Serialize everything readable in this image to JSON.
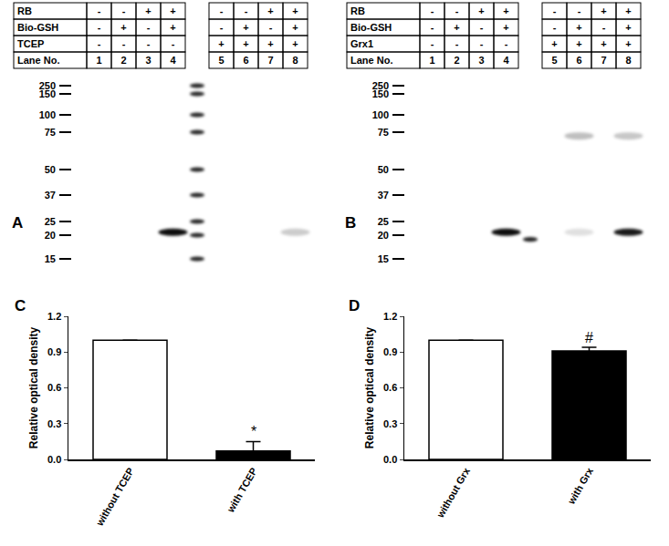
{
  "blots": [
    {
      "label": "A",
      "rows": [
        {
          "name": "RB",
          "cells": [
            "-",
            "-",
            "+",
            "+",
            "-",
            "-",
            "+",
            "+"
          ]
        },
        {
          "name": "Bio-GSH",
          "cells": [
            "-",
            "+",
            "-",
            "+",
            "-",
            "+",
            "-",
            "+"
          ]
        },
        {
          "name": "TCEP",
          "cells": [
            "-",
            "-",
            "-",
            "-",
            "+",
            "+",
            "+",
            "+"
          ]
        },
        {
          "name": "Lane No.",
          "cells": [
            "1",
            "2",
            "3",
            "4",
            "5",
            "6",
            "7",
            "8"
          ]
        }
      ],
      "markers": [
        250,
        150,
        100,
        75,
        50,
        37,
        25,
        20,
        15
      ],
      "ladder_bands": [
        250,
        150,
        100,
        75,
        50,
        37,
        25,
        20,
        15
      ],
      "bands": [
        {
          "lane": 4,
          "kDa": 21,
          "intensity": 0.95
        },
        {
          "lane": 8,
          "kDa": 21,
          "intensity": 0.2
        }
      ]
    },
    {
      "label": "B",
      "rows": [
        {
          "name": "RB",
          "cells": [
            "-",
            "-",
            "+",
            "+",
            "-",
            "-",
            "+",
            "+"
          ]
        },
        {
          "name": "Bio-GSH",
          "cells": [
            "-",
            "+",
            "-",
            "+",
            "-",
            "+",
            "-",
            "+"
          ]
        },
        {
          "name": "Grx1",
          "cells": [
            "-",
            "-",
            "-",
            "-",
            "+",
            "+",
            "+",
            "+"
          ]
        },
        {
          "name": "Lane No.",
          "cells": [
            "1",
            "2",
            "3",
            "4",
            "5",
            "6",
            "7",
            "8"
          ]
        }
      ],
      "markers": [
        250,
        150,
        100,
        75,
        50,
        37,
        25,
        20,
        15
      ],
      "ladder_bands": [
        19
      ],
      "bands": [
        {
          "lane": 4,
          "kDa": 21,
          "intensity": 0.95
        },
        {
          "lane": 6,
          "kDa": 21,
          "intensity": 0.12
        },
        {
          "lane": 6,
          "kDa": 72,
          "intensity": 0.25
        },
        {
          "lane": 8,
          "kDa": 21,
          "intensity": 0.9
        },
        {
          "lane": 8,
          "kDa": 72,
          "intensity": 0.22
        }
      ]
    }
  ],
  "chart_data": [
    {
      "label": "C",
      "type": "bar",
      "categories": [
        "without TCEP",
        "with TCEP"
      ],
      "values": [
        1.0,
        0.07
      ],
      "errors": [
        0,
        0.08
      ],
      "colors": [
        "#ffffff",
        "#000000"
      ],
      "ylabel": "Relative optical density",
      "ylim": [
        0,
        1.2
      ],
      "yticks": [
        {
          "value": 0,
          "label": "0.0"
        },
        0.3,
        0.6,
        0.9,
        1.2
      ],
      "grid": false,
      "annotations": [
        {
          "category": "with TCEP",
          "text": "*"
        }
      ]
    },
    {
      "label": "D",
      "type": "bar",
      "categories": [
        "without Grx",
        "with Grx"
      ],
      "values": [
        1.0,
        0.91
      ],
      "errors": [
        0,
        0.03
      ],
      "colors": [
        "#ffffff",
        "#000000"
      ],
      "ylabel": "Relative optical density",
      "ylim": [
        0,
        1.2
      ],
      "yticks": [
        {
          "value": 0,
          "label": "0.0"
        },
        0.3,
        0.6,
        0.9,
        1.2
      ],
      "grid": false,
      "annotations": [
        {
          "category": "with Grx",
          "text": "#"
        }
      ]
    }
  ]
}
